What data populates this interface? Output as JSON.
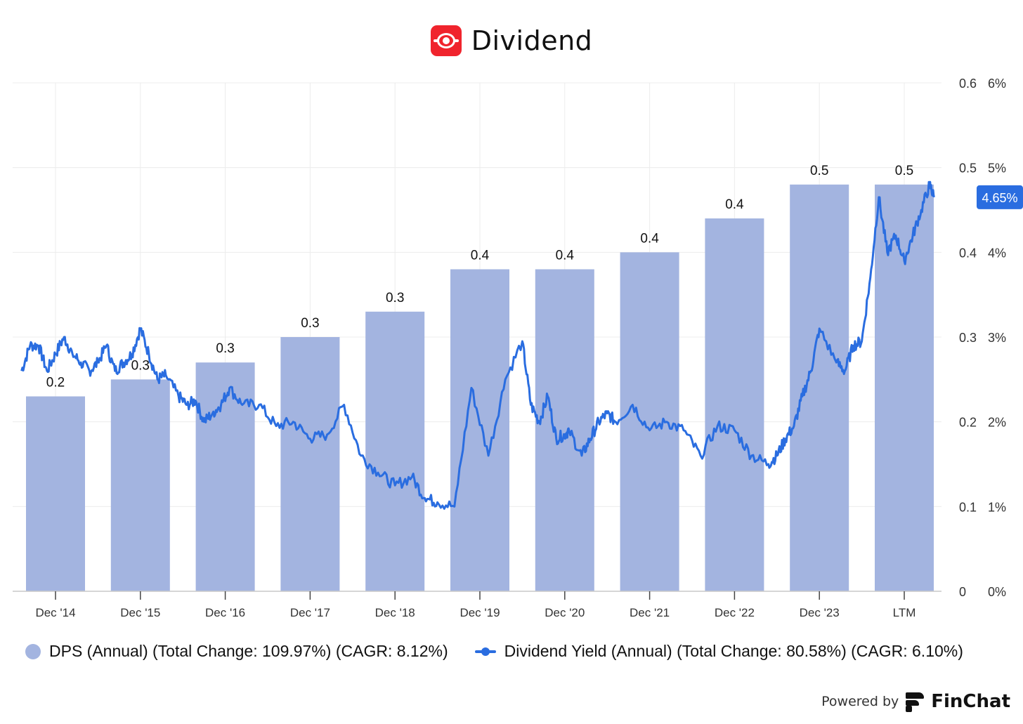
{
  "header": {
    "title": "Dividend",
    "logo_icon": "finchat-dividend-logo-icon"
  },
  "chart_data": {
    "type": "bar",
    "categories": [
      "Dec '14",
      "Dec '15",
      "Dec '16",
      "Dec '17",
      "Dec '18",
      "Dec '19",
      "Dec '20",
      "Dec '21",
      "Dec '22",
      "Dec '23",
      "LTM"
    ],
    "series": [
      {
        "name": "DPS (Annual) (Total Change: 109.97%) (CAGR: 8.12%)",
        "type": "bar",
        "axis": "left",
        "values": [
          0.23,
          0.25,
          0.27,
          0.3,
          0.33,
          0.38,
          0.38,
          0.4,
          0.44,
          0.48,
          0.48
        ],
        "labels": [
          "0.2",
          "0.3",
          "0.3",
          "0.3",
          "0.3",
          "0.4",
          "0.4",
          "0.4",
          "0.4",
          "0.5",
          "0.5"
        ],
        "color": "#a3b4e0"
      },
      {
        "name": "Dividend Yield (Annual) (Total Change: 80.58%) (CAGR: 6.10%)",
        "type": "line",
        "axis": "right",
        "unit": "%",
        "color": "#2a6de0",
        "x": [
          -0.4,
          -0.3,
          -0.2,
          -0.1,
          0,
          0.1,
          0.2,
          0.3,
          0.4,
          0.5,
          0.6,
          0.7,
          0.8,
          0.9,
          1.0,
          1.1,
          1.2,
          1.3,
          1.45,
          1.55,
          1.65,
          1.75,
          1.85,
          1.95,
          2.05,
          2.2,
          2.4,
          2.6,
          2.8,
          3.0,
          3.2,
          3.4,
          3.6,
          3.8,
          4.0,
          4.2,
          4.35,
          4.5,
          4.7,
          4.9,
          5.1,
          5.3,
          5.5,
          5.6,
          5.7,
          5.8,
          5.9,
          6.0,
          6.05,
          6.2,
          6.3,
          6.4,
          6.5,
          6.6,
          6.8,
          7.0,
          7.2,
          7.4,
          7.6,
          7.8,
          8.0,
          8.2,
          8.4,
          8.5,
          8.6,
          8.7,
          8.8,
          8.9,
          9.0,
          9.2,
          9.3,
          9.4,
          9.5,
          9.6,
          9.7,
          9.8,
          9.9,
          10.0,
          10.1,
          10.2,
          10.3,
          10.35
        ],
        "values": [
          2.6,
          2.9,
          2.9,
          2.6,
          2.8,
          3.0,
          2.8,
          2.7,
          2.6,
          2.7,
          2.9,
          2.6,
          2.7,
          2.8,
          3.1,
          2.8,
          2.5,
          2.55,
          2.3,
          2.2,
          2.25,
          2.0,
          2.1,
          2.2,
          2.4,
          2.2,
          2.2,
          1.95,
          2.0,
          1.8,
          1.85,
          2.2,
          1.6,
          1.4,
          1.25,
          1.35,
          1.1,
          1.05,
          1.0,
          2.4,
          1.6,
          2.5,
          2.95,
          2.2,
          2.0,
          2.3,
          1.8,
          1.85,
          1.9,
          1.6,
          1.8,
          2.0,
          2.1,
          2.0,
          2.2,
          1.9,
          2.0,
          1.9,
          1.6,
          1.95,
          1.9,
          1.6,
          1.5,
          1.6,
          1.8,
          1.95,
          2.3,
          2.6,
          3.1,
          2.7,
          2.6,
          2.9,
          2.95,
          3.7,
          4.65,
          4.0,
          4.2,
          3.9,
          4.2,
          4.5,
          4.8,
          4.65
        ],
        "current_value_label": "4.65%"
      }
    ],
    "y_left": {
      "ylim": [
        0,
        0.6
      ],
      "ticks": [
        "0",
        "0.1",
        "0.2",
        "0.3",
        "0.4",
        "0.5",
        "0.6"
      ]
    },
    "y_right": {
      "ylim": [
        0,
        6
      ],
      "ticks": [
        "0%",
        "1%",
        "2%",
        "3%",
        "4%",
        "5%",
        "6%"
      ]
    },
    "grid": true,
    "legend": "bottom-left"
  },
  "legend": {
    "items": [
      {
        "label": "DPS (Annual) (Total Change: 109.97%) (CAGR: 8.12%)",
        "icon": "bar-circle-icon"
      },
      {
        "label": "Dividend Yield (Annual) (Total Change: 80.58%) (CAGR: 6.10%)",
        "icon": "line-marker-icon"
      }
    ]
  },
  "footer": {
    "powered_by": "Powered by",
    "brand": "FinChat",
    "brand_icon": "finchat-logo-icon"
  },
  "colors": {
    "bar": "#a3b4e0",
    "line": "#2a6de0",
    "logo": "#f0242d",
    "grid": "#ececec",
    "axis": "#c9c9c9"
  }
}
